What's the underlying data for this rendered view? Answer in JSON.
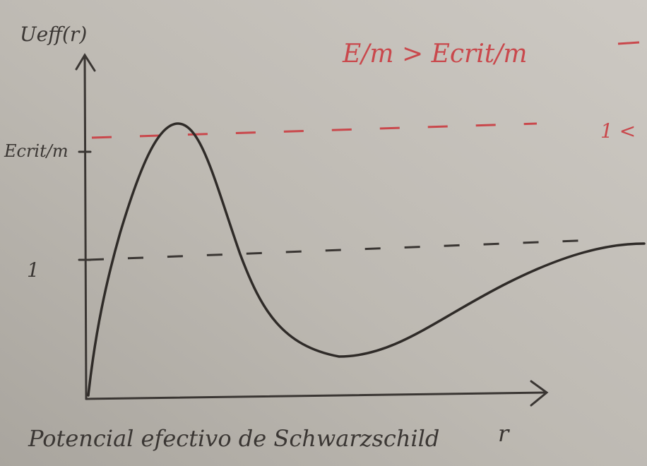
{
  "diagram": {
    "title": "Potencial efectivo de Schwarzschild",
    "y_axis_label": "Ueff(r)",
    "x_axis_label": "r",
    "level_labels": [
      "Ecrit/m",
      "1"
    ],
    "condition": "E/m > Ecrit/m",
    "side_note": "1 <"
  }
}
